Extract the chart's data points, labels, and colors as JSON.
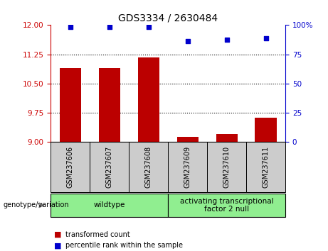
{
  "title": "GDS3334 / 2630484",
  "samples": [
    "GSM237606",
    "GSM237607",
    "GSM237608",
    "GSM237609",
    "GSM237610",
    "GSM237611"
  ],
  "bar_values": [
    10.9,
    10.9,
    11.17,
    9.13,
    9.2,
    9.62
  ],
  "percentile_values": [
    98.5,
    98.5,
    98.5,
    86,
    87.5,
    88.5
  ],
  "ymin": 9.0,
  "ymax": 12.0,
  "yticks": [
    9,
    9.75,
    10.5,
    11.25,
    12
  ],
  "right_yticks": [
    0,
    25,
    50,
    75,
    100
  ],
  "bar_color": "#bb0000",
  "dot_color": "#0000cc",
  "group_labels": [
    "wildtype",
    "activating transcriptional\nfactor 2 null"
  ],
  "group_color": "#90ee90",
  "left_axis_color": "#cc0000",
  "right_axis_color": "#0000cc",
  "legend_bar_label": "transformed count",
  "legend_dot_label": "percentile rank within the sample",
  "plot_bg": "#ffffff",
  "sample_bg": "#cccccc",
  "n_wildtype": 3,
  "n_atf2null": 3
}
